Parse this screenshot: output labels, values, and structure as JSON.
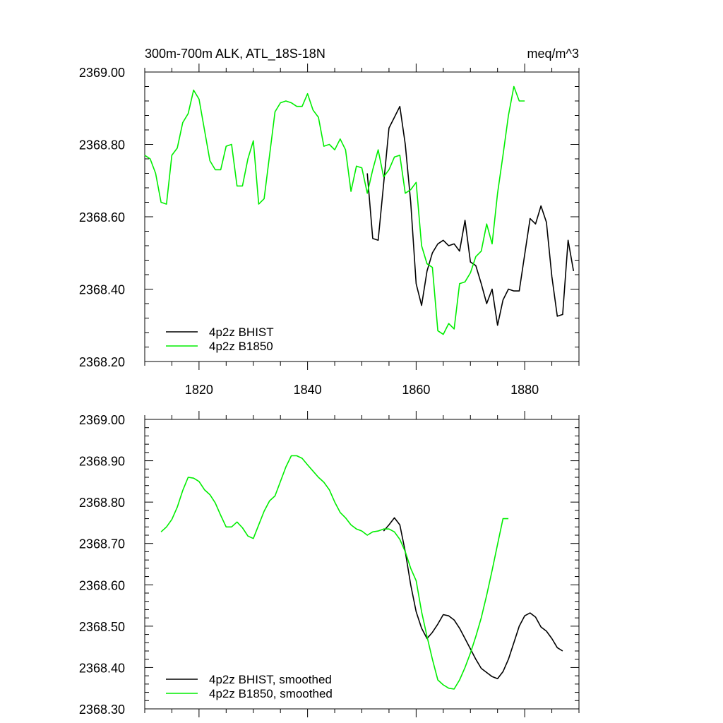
{
  "chart_data": [
    {
      "type": "line",
      "title_left": "300m-700m ALK, ATL_18S-18N",
      "title_right": "meq/m^3",
      "xlim": [
        1810,
        1890
      ],
      "ylim": [
        2368.2,
        2369.0
      ],
      "yticks": [
        2368.2,
        2368.4,
        2368.6,
        2368.8,
        2369.0
      ],
      "ytick_labels": [
        "2368.20",
        "2368.40",
        "2368.60",
        "2368.80",
        "2369.00"
      ],
      "xticks": [
        1820,
        1840,
        1860,
        1880
      ],
      "xtick_labels": [
        "1820",
        "1840",
        "1860",
        "1880"
      ],
      "legend": [
        "4p2z BHIST",
        "4p2z B1850"
      ],
      "series": [
        {
          "name": "4p2z BHIST",
          "color": "#000000",
          "x": [
            1851,
            1852,
            1853,
            1854,
            1855,
            1856,
            1857,
            1858,
            1859,
            1860,
            1861,
            1862,
            1863,
            1864,
            1865,
            1866,
            1867,
            1868,
            1869,
            1870,
            1871,
            1872,
            1873,
            1874,
            1875,
            1876,
            1877,
            1878,
            1879,
            1880,
            1881,
            1882,
            1883,
            1884,
            1885,
            1886,
            1887,
            1888,
            1889
          ],
          "y": [
            2368.72,
            2368.54,
            2368.535,
            2368.69,
            2368.845,
            2368.875,
            2368.905,
            2368.8,
            2368.64,
            2368.415,
            2368.355,
            2368.45,
            2368.5,
            2368.525,
            2368.535,
            2368.52,
            2368.525,
            2368.505,
            2368.59,
            2368.475,
            2368.465,
            2368.415,
            2368.36,
            2368.4,
            2368.3,
            2368.37,
            2368.4,
            2368.395,
            2368.395,
            2368.495,
            2368.595,
            2368.58,
            2368.63,
            2368.585,
            2368.435,
            2368.325,
            2368.33,
            2368.535,
            2368.45
          ]
        },
        {
          "name": "4p2z B1850",
          "color": "#00ee00",
          "x": [
            1810,
            1811,
            1812,
            1813,
            1814,
            1815,
            1816,
            1817,
            1818,
            1819,
            1820,
            1821,
            1822,
            1823,
            1824,
            1825,
            1826,
            1827,
            1828,
            1829,
            1830,
            1831,
            1832,
            1833,
            1834,
            1835,
            1836,
            1837,
            1838,
            1839,
            1840,
            1841,
            1842,
            1843,
            1844,
            1845,
            1846,
            1847,
            1848,
            1849,
            1850,
            1851,
            1852,
            1853,
            1854,
            1855,
            1856,
            1857,
            1858,
            1859,
            1860,
            1861,
            1862,
            1863,
            1864,
            1865,
            1866,
            1867,
            1868,
            1869,
            1870,
            1871,
            1872,
            1873,
            1874,
            1875,
            1876,
            1877,
            1878,
            1879,
            1880
          ],
          "y": [
            2368.77,
            2368.76,
            2368.72,
            2368.64,
            2368.635,
            2368.77,
            2368.79,
            2368.86,
            2368.885,
            2368.95,
            2368.925,
            2368.84,
            2368.755,
            2368.73,
            2368.73,
            2368.795,
            2368.8,
            2368.685,
            2368.685,
            2368.76,
            2368.81,
            2368.635,
            2368.65,
            2368.77,
            2368.89,
            2368.915,
            2368.92,
            2368.915,
            2368.905,
            2368.905,
            2368.94,
            2368.895,
            2368.875,
            2368.795,
            2368.8,
            2368.785,
            2368.815,
            2368.785,
            2368.67,
            2368.74,
            2368.735,
            2368.665,
            2368.73,
            2368.785,
            2368.71,
            2368.73,
            2368.765,
            2368.77,
            2368.665,
            2368.675,
            2368.695,
            2368.52,
            2368.47,
            2368.46,
            2368.285,
            2368.275,
            2368.305,
            2368.29,
            2368.415,
            2368.42,
            2368.445,
            2368.49,
            2368.505,
            2368.58,
            2368.525,
            2368.665,
            2368.77,
            2368.88,
            2368.96,
            2368.92,
            2368.92
          ]
        }
      ]
    },
    {
      "type": "line",
      "xlim": [
        1810,
        1890
      ],
      "ylim": [
        2368.3,
        2369.0
      ],
      "yticks": [
        2368.3,
        2368.4,
        2368.5,
        2368.6,
        2368.7,
        2368.8,
        2368.9,
        2369.0
      ],
      "ytick_labels": [
        "2368.30",
        "2368.40",
        "2368.50",
        "2368.60",
        "2368.70",
        "2368.80",
        "2368.90",
        "2369.00"
      ],
      "xticks": [
        1820,
        1840,
        1860,
        1880
      ],
      "legend": [
        "4p2z BHIST, smoothed",
        "4p2z B1850, smoothed"
      ],
      "series": [
        {
          "name": "4p2z BHIST, smoothed",
          "color": "#000000",
          "x": [
            1854,
            1855,
            1856,
            1857,
            1858,
            1859,
            1860,
            1861,
            1862,
            1863,
            1864,
            1865,
            1866,
            1867,
            1868,
            1869,
            1870,
            1871,
            1872,
            1873,
            1874,
            1875,
            1876,
            1877,
            1878,
            1879,
            1880,
            1881,
            1882,
            1883,
            1884,
            1885,
            1886,
            1887
          ],
          "y": [
            2368.73,
            2368.745,
            2368.762,
            2368.745,
            2368.68,
            2368.6,
            2368.535,
            2368.495,
            2368.47,
            2368.485,
            2368.505,
            2368.528,
            2368.525,
            2368.515,
            2368.495,
            2368.47,
            2368.445,
            2368.42,
            2368.398,
            2368.388,
            2368.378,
            2368.373,
            2368.39,
            2368.42,
            2368.46,
            2368.5,
            2368.525,
            2368.532,
            2368.522,
            2368.498,
            2368.488,
            2368.47,
            2368.448,
            2368.44
          ]
        },
        {
          "name": "4p2z B1850, smoothed",
          "color": "#00ee00",
          "x": [
            1813,
            1814,
            1815,
            1816,
            1817,
            1818,
            1819,
            1820,
            1821,
            1822,
            1823,
            1824,
            1825,
            1826,
            1827,
            1828,
            1829,
            1830,
            1831,
            1832,
            1833,
            1834,
            1835,
            1836,
            1837,
            1838,
            1839,
            1840,
            1841,
            1842,
            1843,
            1844,
            1845,
            1846,
            1847,
            1848,
            1849,
            1850,
            1851,
            1852,
            1853,
            1854,
            1855,
            1856,
            1857,
            1858,
            1859,
            1860,
            1861,
            1862,
            1863,
            1864,
            1865,
            1866,
            1867,
            1868,
            1869,
            1870,
            1871,
            1872,
            1873,
            1874,
            1875,
            1876,
            1877
          ],
          "y": [
            2368.728,
            2368.74,
            2368.758,
            2368.788,
            2368.828,
            2368.86,
            2368.858,
            2368.85,
            2368.83,
            2368.818,
            2368.798,
            2368.768,
            2368.74,
            2368.74,
            2368.752,
            2368.738,
            2368.718,
            2368.712,
            2368.745,
            2368.778,
            2368.803,
            2368.815,
            2368.85,
            2368.885,
            2368.912,
            2368.912,
            2368.906,
            2368.89,
            2368.875,
            2368.86,
            2368.848,
            2368.83,
            2368.8,
            2368.775,
            2368.762,
            2368.745,
            2368.735,
            2368.73,
            2368.72,
            2368.728,
            2368.73,
            2368.735,
            2368.735,
            2368.728,
            2368.71,
            2368.68,
            2368.64,
            2368.61,
            2368.535,
            2368.475,
            2368.42,
            2368.37,
            2368.358,
            2368.35,
            2368.348,
            2368.37,
            2368.4,
            2368.435,
            2368.475,
            2368.52,
            2368.575,
            2368.635,
            2368.698,
            2368.76,
            2368.76
          ]
        }
      ]
    }
  ]
}
